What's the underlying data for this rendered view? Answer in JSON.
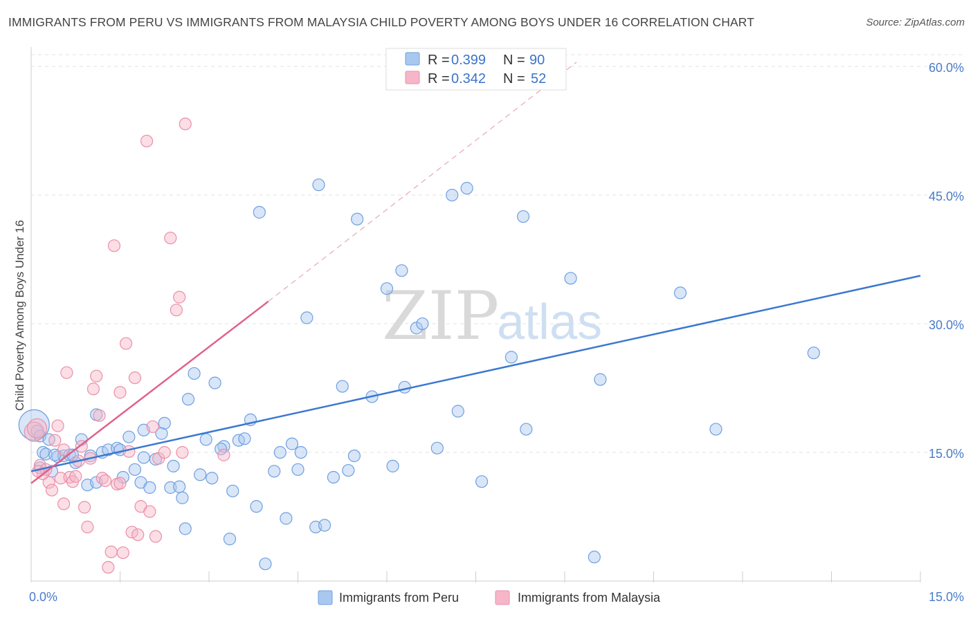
{
  "header": {
    "title": "IMMIGRANTS FROM PERU VS IMMIGRANTS FROM MALAYSIA CHILD POVERTY AMONG BOYS UNDER 16 CORRELATION CHART",
    "source": "Source: ZipAtlas.com"
  },
  "watermark": {
    "zip": "ZIP",
    "atlas": "atlas"
  },
  "legend": {
    "r_label": "R = ",
    "n_label": "N = ",
    "items": [
      {
        "r": "0.399",
        "n": "90",
        "color": "#a9c8ef"
      },
      {
        "r": "0.342",
        "n": "52",
        "color": "#f6b6c8"
      }
    ]
  },
  "chart_data": {
    "type": "scatter",
    "title": "IMMIGRANTS FROM PERU VS IMMIGRANTS FROM MALAYSIA CHILD POVERTY AMONG BOYS UNDER 16 CORRELATION CHART",
    "xlabel": "",
    "ylabel": "Child Poverty Among Boys Under 16",
    "xlim": [
      0,
      15
    ],
    "ylim": [
      0,
      61.7
    ],
    "x_ticks": [
      "0.0%",
      "15.0%"
    ],
    "y_ticks": [
      {
        "value": 15,
        "label": "15.0%"
      },
      {
        "value": 30,
        "label": "30.0%"
      },
      {
        "value": 45,
        "label": "45.0%"
      },
      {
        "value": 60,
        "label": "60.0%"
      }
    ],
    "grid": true,
    "legend_position": "top-center",
    "series": [
      {
        "name": "Immigrants from Peru",
        "color": "#6f9fe0",
        "fill": "#a9c8ef",
        "R": 0.399,
        "N": 90,
        "trend": {
          "x": [
            0.0,
            15.0
          ],
          "y": [
            12.8,
            35.6
          ],
          "style": "solid",
          "line_color": "#3a78d0"
        },
        "points": [
          [
            0.05,
            18.2
          ],
          [
            0.1,
            17.5
          ],
          [
            0.15,
            16.9
          ],
          [
            0.2,
            15.0
          ],
          [
            0.25,
            14.8
          ],
          [
            0.3,
            16.5
          ],
          [
            0.35,
            12.8
          ],
          [
            0.45,
            14.5
          ],
          [
            0.55,
            14.6
          ],
          [
            0.65,
            14.7
          ],
          [
            0.75,
            13.8
          ],
          [
            0.85,
            16.5
          ],
          [
            0.95,
            11.2
          ],
          [
            1.0,
            14.6
          ],
          [
            1.1,
            11.5
          ],
          [
            1.2,
            15.0
          ],
          [
            1.3,
            15.3
          ],
          [
            1.45,
            15.5
          ],
          [
            1.55,
            12.1
          ],
          [
            1.65,
            16.8
          ],
          [
            1.75,
            13.0
          ],
          [
            1.85,
            11.5
          ],
          [
            1.9,
            14.4
          ],
          [
            2.0,
            10.9
          ],
          [
            2.1,
            14.2
          ],
          [
            2.2,
            17.2
          ],
          [
            2.35,
            10.9
          ],
          [
            2.4,
            13.4
          ],
          [
            2.5,
            11.0
          ],
          [
            2.55,
            9.7
          ],
          [
            2.6,
            6.1
          ],
          [
            2.65,
            21.2
          ],
          [
            2.75,
            24.2
          ],
          [
            2.85,
            12.4
          ],
          [
            2.95,
            16.5
          ],
          [
            3.05,
            12.0
          ],
          [
            3.1,
            23.1
          ],
          [
            3.25,
            15.7
          ],
          [
            3.35,
            4.9
          ],
          [
            3.4,
            10.5
          ],
          [
            3.5,
            16.4
          ],
          [
            3.6,
            16.6
          ],
          [
            3.7,
            18.8
          ],
          [
            3.8,
            8.7
          ],
          [
            3.85,
            43.0
          ],
          [
            3.95,
            2.0
          ],
          [
            4.1,
            12.8
          ],
          [
            4.2,
            15.0
          ],
          [
            4.3,
            7.3
          ],
          [
            4.4,
            16.0
          ],
          [
            4.5,
            13.0
          ],
          [
            4.55,
            15.0
          ],
          [
            4.65,
            30.7
          ],
          [
            4.8,
            6.3
          ],
          [
            4.85,
            46.2
          ],
          [
            4.95,
            6.5
          ],
          [
            5.1,
            12.1
          ],
          [
            5.25,
            22.7
          ],
          [
            5.35,
            12.9
          ],
          [
            5.45,
            14.6
          ],
          [
            5.5,
            42.2
          ],
          [
            5.75,
            21.5
          ],
          [
            6.0,
            34.1
          ],
          [
            6.1,
            13.4
          ],
          [
            6.25,
            36.2
          ],
          [
            6.3,
            22.6
          ],
          [
            6.5,
            29.5
          ],
          [
            6.6,
            30.0
          ],
          [
            6.85,
            15.5
          ],
          [
            7.1,
            45.0
          ],
          [
            7.2,
            19.8
          ],
          [
            7.35,
            45.8
          ],
          [
            7.6,
            11.6
          ],
          [
            8.1,
            26.1
          ],
          [
            8.3,
            42.5
          ],
          [
            8.35,
            17.7
          ],
          [
            9.1,
            35.3
          ],
          [
            9.5,
            2.8
          ],
          [
            9.6,
            23.5
          ],
          [
            10.95,
            33.6
          ],
          [
            11.55,
            17.7
          ],
          [
            13.2,
            26.6
          ],
          [
            0.15,
            13.2
          ],
          [
            0.4,
            14.7
          ],
          [
            0.7,
            14.7
          ],
          [
            1.1,
            19.4
          ],
          [
            1.5,
            15.3
          ],
          [
            1.9,
            17.6
          ],
          [
            2.25,
            18.4
          ],
          [
            3.2,
            15.4
          ]
        ]
      },
      {
        "name": "Immigrants from Malaysia",
        "color": "#ea8fa8",
        "fill": "#f6b6c8",
        "R": 0.342,
        "N": 52,
        "trend": {
          "x": [
            0.0,
            4.0
          ],
          "y": [
            11.4,
            32.6
          ],
          "style": "solid",
          "line_color": "#e0628a"
        },
        "trend_extension": {
          "x": [
            4.0,
            9.2
          ],
          "y": [
            32.6,
            60.5
          ],
          "style": "dashed"
        },
        "points": [
          [
            0.05,
            17.4
          ],
          [
            0.1,
            17.8
          ],
          [
            0.15,
            13.5
          ],
          [
            0.2,
            12.5
          ],
          [
            0.25,
            13.0
          ],
          [
            0.3,
            11.5
          ],
          [
            0.35,
            10.6
          ],
          [
            0.4,
            16.4
          ],
          [
            0.45,
            18.1
          ],
          [
            0.5,
            12.0
          ],
          [
            0.55,
            9.0
          ],
          [
            0.6,
            24.3
          ],
          [
            0.65,
            12.1
          ],
          [
            0.7,
            11.6
          ],
          [
            0.75,
            12.2
          ],
          [
            0.8,
            14.0
          ],
          [
            0.85,
            15.7
          ],
          [
            0.9,
            8.6
          ],
          [
            0.95,
            6.3
          ],
          [
            1.0,
            14.3
          ],
          [
            1.05,
            22.4
          ],
          [
            1.1,
            23.9
          ],
          [
            1.15,
            19.3
          ],
          [
            1.2,
            12.0
          ],
          [
            1.25,
            11.7
          ],
          [
            1.3,
            1.6
          ],
          [
            1.35,
            3.4
          ],
          [
            1.4,
            39.1
          ],
          [
            1.45,
            11.3
          ],
          [
            1.5,
            22.0
          ],
          [
            1.55,
            3.3
          ],
          [
            1.6,
            27.7
          ],
          [
            1.65,
            15.1
          ],
          [
            1.7,
            5.7
          ],
          [
            1.75,
            23.7
          ],
          [
            1.8,
            5.4
          ],
          [
            1.85,
            8.7
          ],
          [
            1.95,
            51.3
          ],
          [
            2.0,
            8.1
          ],
          [
            2.05,
            18.0
          ],
          [
            2.1,
            5.2
          ],
          [
            2.15,
            14.3
          ],
          [
            2.25,
            15.0
          ],
          [
            2.35,
            40.0
          ],
          [
            2.45,
            31.6
          ],
          [
            2.5,
            33.1
          ],
          [
            2.55,
            15.0
          ],
          [
            2.6,
            53.3
          ],
          [
            3.25,
            14.7
          ],
          [
            0.12,
            12.8
          ],
          [
            0.55,
            15.3
          ],
          [
            1.5,
            11.4
          ]
        ]
      }
    ],
    "bottom_legend": [
      "Immigrants from Peru",
      "Immigrants from Malaysia"
    ]
  }
}
